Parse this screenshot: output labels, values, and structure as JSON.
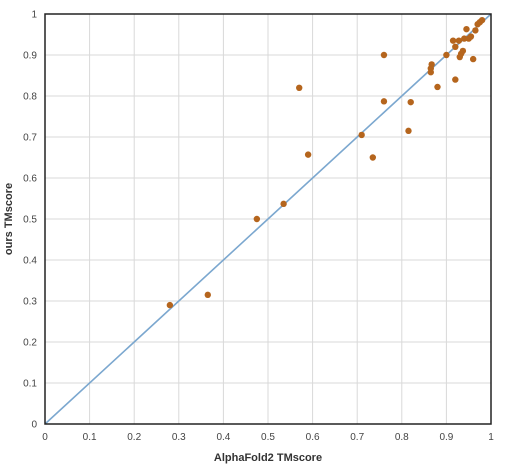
{
  "chart_data": {
    "type": "scatter",
    "xlabel": "AlphaFold2 TMscore",
    "ylabel": "ours TMscore",
    "xlim": [
      0,
      1
    ],
    "ylim": [
      0,
      1
    ],
    "xticks": [
      "0",
      "0.1",
      "0.2",
      "0.3",
      "0.4",
      "0.5",
      "0.6",
      "0.7",
      "0.8",
      "0.9",
      "1"
    ],
    "yticks": [
      "0",
      "0.1",
      "0.2",
      "0.3",
      "0.4",
      "0.5",
      "0.6",
      "0.7",
      "0.8",
      "0.9",
      "1"
    ],
    "grid": true,
    "reference_line": {
      "from": [
        0,
        0
      ],
      "to": [
        1,
        1
      ],
      "color": "#7ba7cf"
    },
    "point_color": "#b5651d",
    "series": [
      {
        "points": [
          [
            0.28,
            0.29
          ],
          [
            0.365,
            0.315
          ],
          [
            0.475,
            0.5
          ],
          [
            0.535,
            0.537
          ],
          [
            0.57,
            0.82
          ],
          [
            0.59,
            0.657
          ],
          [
            0.71,
            0.705
          ],
          [
            0.735,
            0.65
          ],
          [
            0.76,
            0.9
          ],
          [
            0.76,
            0.787
          ],
          [
            0.815,
            0.715
          ],
          [
            0.82,
            0.785
          ],
          [
            0.865,
            0.858
          ],
          [
            0.865,
            0.867
          ],
          [
            0.867,
            0.877
          ],
          [
            0.88,
            0.822
          ],
          [
            0.9,
            0.9
          ],
          [
            0.915,
            0.935
          ],
          [
            0.92,
            0.92
          ],
          [
            0.92,
            0.84
          ],
          [
            0.928,
            0.935
          ],
          [
            0.93,
            0.895
          ],
          [
            0.933,
            0.903
          ],
          [
            0.937,
            0.91
          ],
          [
            0.94,
            0.94
          ],
          [
            0.945,
            0.963
          ],
          [
            0.95,
            0.94
          ],
          [
            0.955,
            0.945
          ],
          [
            0.96,
            0.89
          ],
          [
            0.965,
            0.96
          ],
          [
            0.97,
            0.975
          ],
          [
            0.975,
            0.98
          ],
          [
            0.98,
            0.985
          ]
        ]
      }
    ]
  }
}
